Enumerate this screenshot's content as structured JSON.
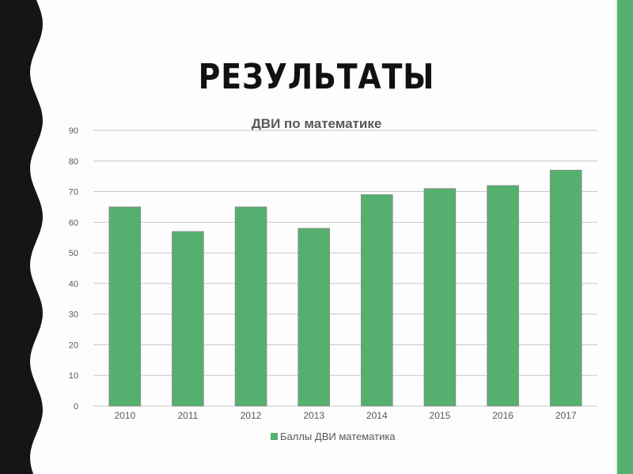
{
  "slide": {
    "title": "РЕЗУЛЬТАТЫ"
  },
  "colors": {
    "accent": "#55b06f",
    "bar": "#55b06f",
    "bar_edge": "#8a8a8a",
    "grid": "#c8c8c8",
    "dark_band": "#151515",
    "text": "#595959"
  },
  "chart_data": {
    "type": "bar",
    "title": "ДВИ по математике",
    "categories": [
      "2010",
      "2011",
      "2012",
      "2013",
      "2014",
      "2015",
      "2016",
      "2017"
    ],
    "series": [
      {
        "name": "Баллы ДВИ математика",
        "values": [
          65,
          57,
          65,
          58,
          69,
          71,
          72,
          77
        ]
      }
    ],
    "ylim": [
      0,
      90
    ],
    "yticks": [
      0,
      10,
      20,
      30,
      40,
      50,
      60,
      70,
      80,
      90
    ],
    "xlabel": "",
    "ylabel": "",
    "grid": true,
    "legend": "bottom"
  }
}
